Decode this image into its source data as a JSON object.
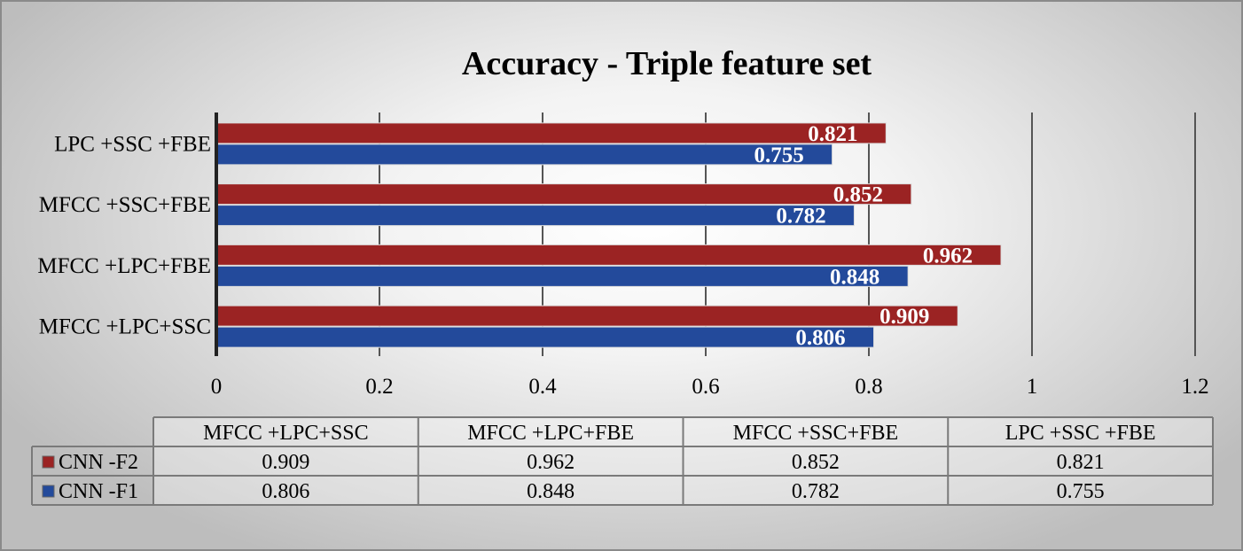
{
  "chart_data": {
    "type": "bar",
    "orientation": "horizontal",
    "title": "Accuracy - Triple feature set",
    "categories": [
      "MFCC +LPC+SSC",
      "MFCC +LPC+FBE",
      "MFCC +SSC+FBE",
      "LPC +SSC +FBE"
    ],
    "series": [
      {
        "name": "CNN -F2",
        "values": [
          0.909,
          0.962,
          0.852,
          0.821
        ],
        "color": "#9B2323"
      },
      {
        "name": "CNN -F1",
        "values": [
          0.806,
          0.848,
          0.782,
          0.755
        ],
        "color": "#234A9B"
      }
    ],
    "value_labels": {
      "CNN -F2": [
        "0.909",
        "0.962",
        "0.852",
        "0.821"
      ],
      "CNN -F1": [
        "0.806",
        "0.848",
        "0.782",
        "0.755"
      ]
    },
    "xlim": [
      0,
      1.2
    ],
    "ticks": [
      "0",
      "0.2",
      "0.4",
      "0.6",
      "0.8",
      "1",
      "1.2"
    ],
    "tick_values": [
      0,
      0.2,
      0.4,
      0.6,
      0.8,
      1,
      1.2
    ],
    "grid": true,
    "data_table": true,
    "xlabel": "",
    "ylabel": ""
  }
}
